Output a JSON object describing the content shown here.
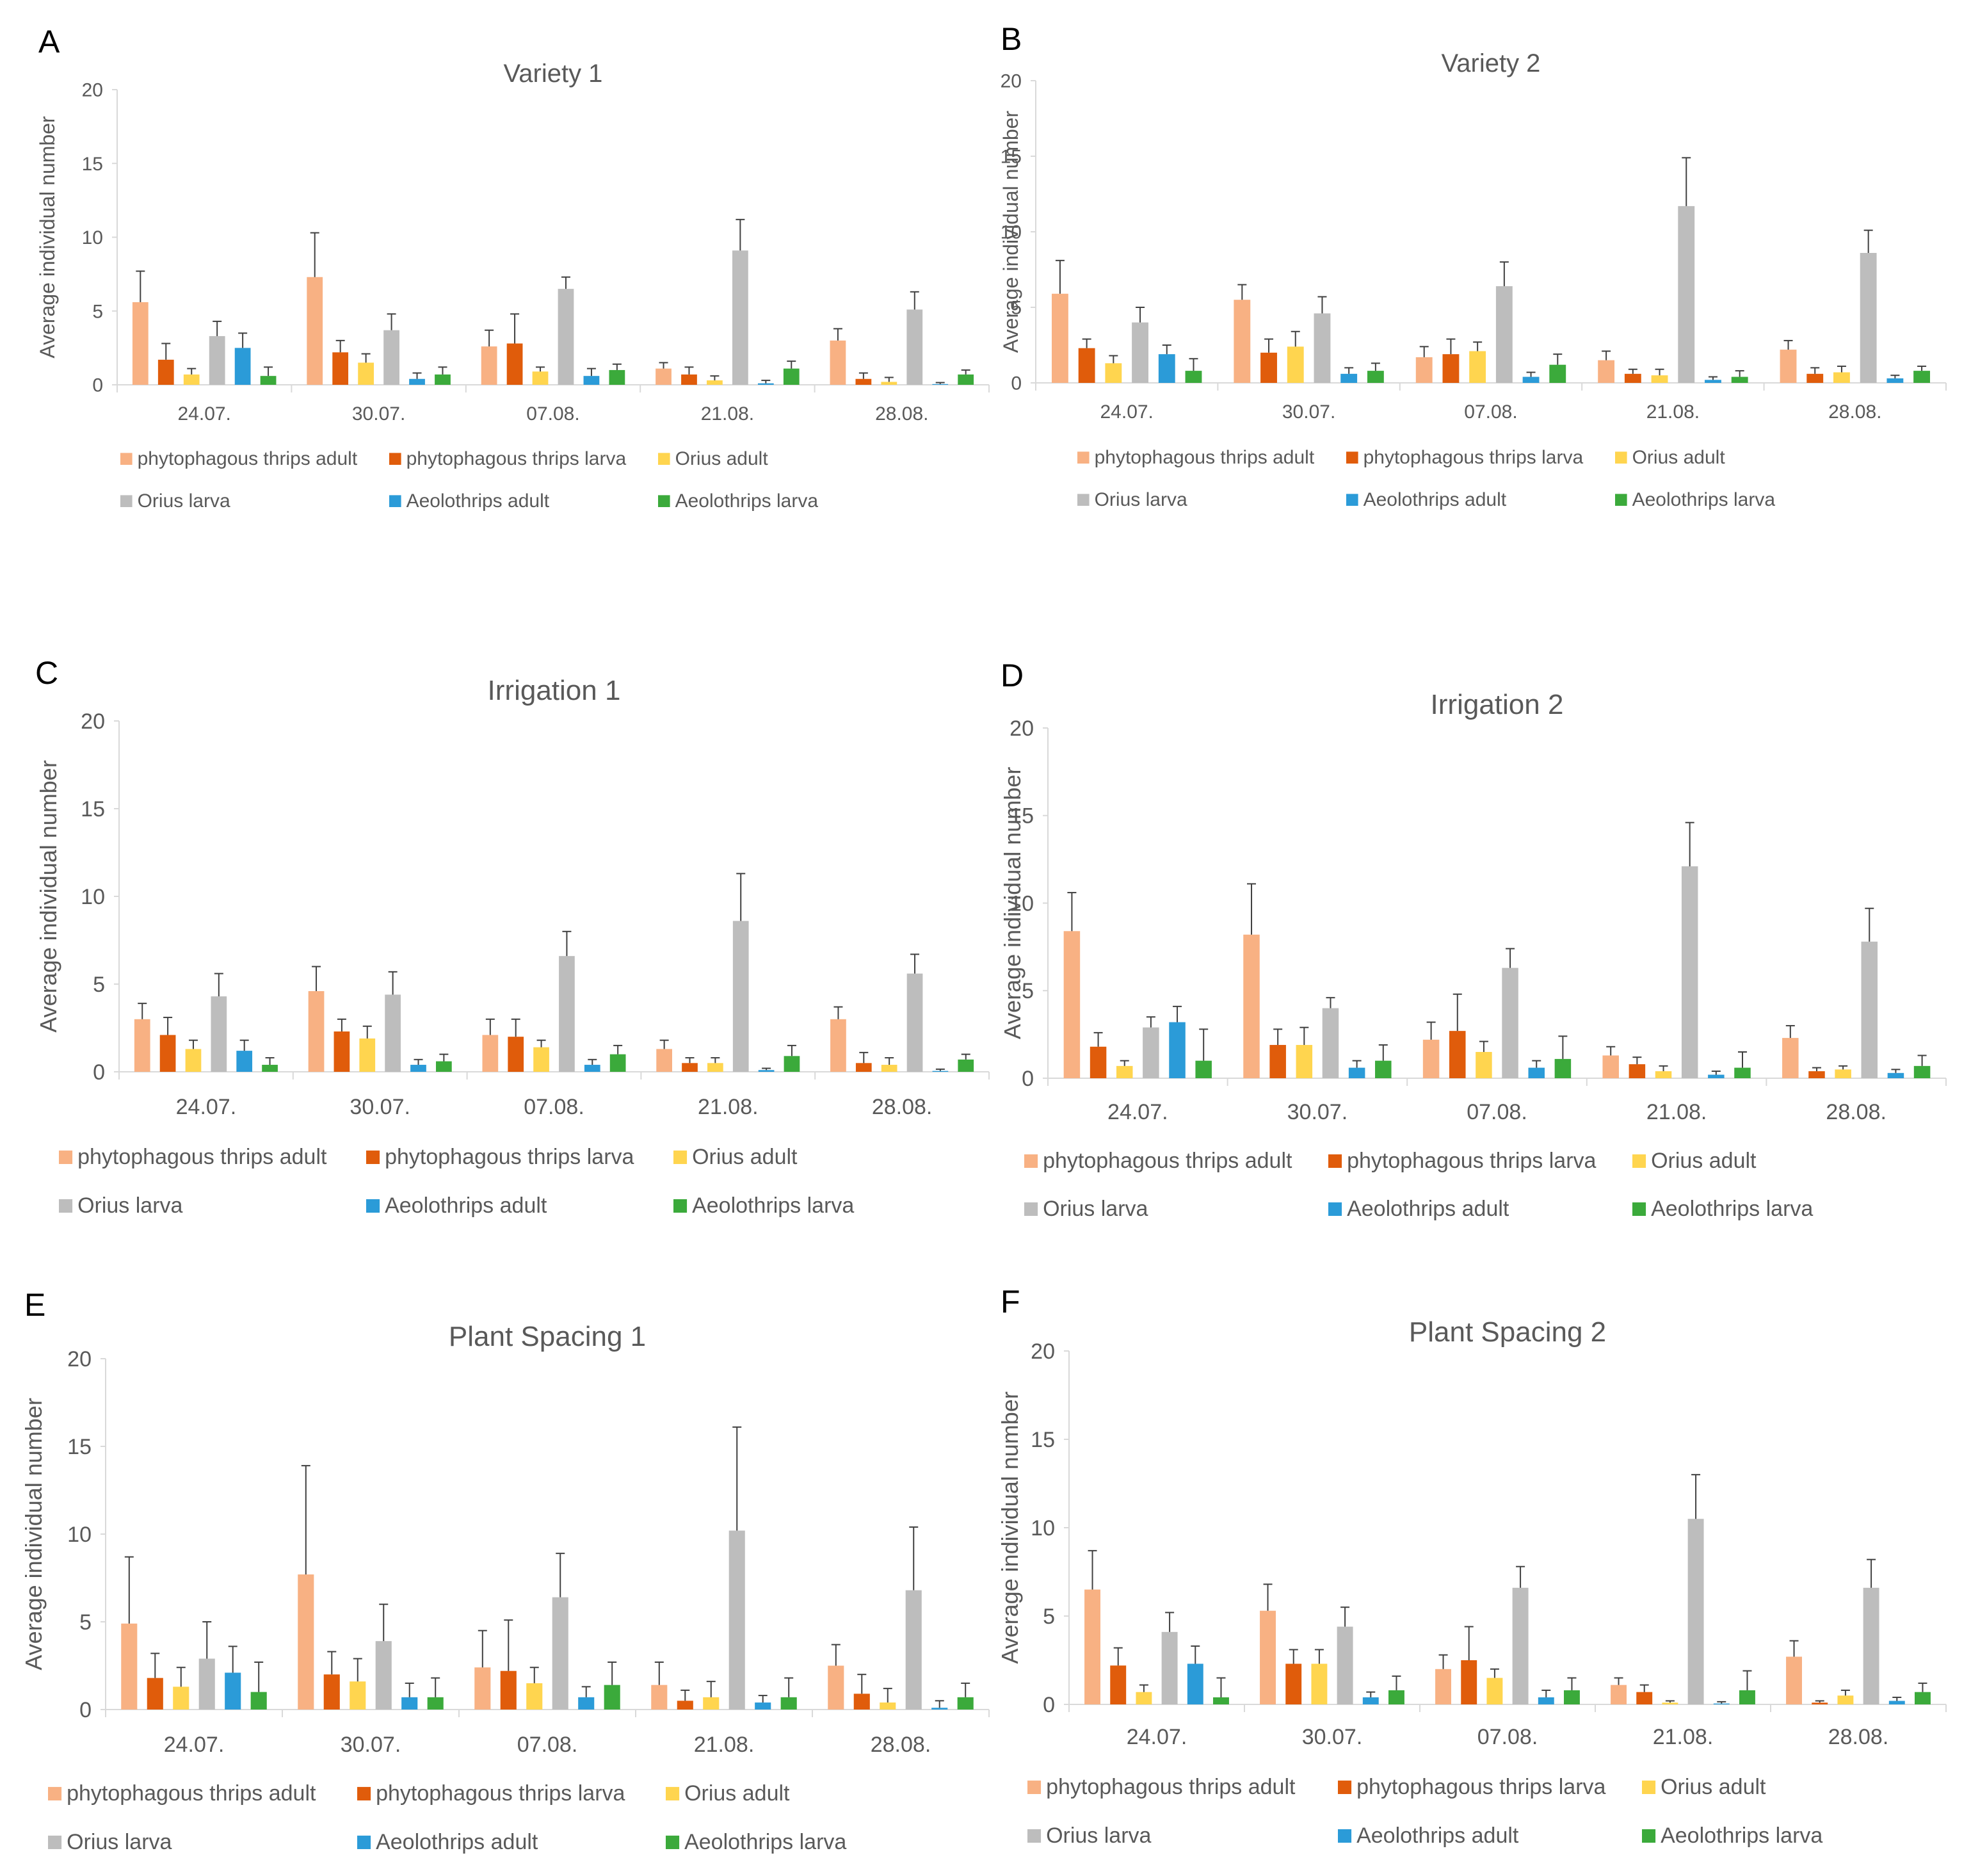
{
  "figure": {
    "series_names": [
      "phytophagous thrips adult",
      "phytophagous thrips larva",
      "Orius adult",
      "Orius larva",
      "Aeolothrips adult",
      "Aeolothrips larva"
    ],
    "series_colors": [
      "#F8B183",
      "#E05C0B",
      "#FFD54F",
      "#BDBDBD",
      "#2B9BD8",
      "#3BAA3B"
    ],
    "axis_color": "#D9D9D9",
    "text_color": "#595959"
  },
  "chart_data": [
    {
      "panel": "A",
      "type": "bar",
      "title": "Variety 1",
      "ylabel": "Average individual number",
      "ylim": [
        0,
        20
      ],
      "yticks": [
        0,
        5,
        10,
        15,
        20
      ],
      "categories": [
        "24.07.",
        "30.07.",
        "07.08.",
        "21.08.",
        "28.08."
      ],
      "legend_position": "bottom",
      "series": [
        {
          "name": "phytophagous thrips adult",
          "values": [
            5.6,
            7.3,
            2.6,
            1.1,
            3.0
          ],
          "errors": [
            2.1,
            3.0,
            1.1,
            0.4,
            0.8
          ]
        },
        {
          "name": "phytophagous thrips larva",
          "values": [
            1.7,
            2.2,
            2.8,
            0.7,
            0.4
          ],
          "errors": [
            1.1,
            0.8,
            2.0,
            0.5,
            0.4
          ]
        },
        {
          "name": "Orius adult",
          "values": [
            0.7,
            1.5,
            0.9,
            0.3,
            0.2
          ],
          "errors": [
            0.4,
            0.6,
            0.3,
            0.3,
            0.3
          ]
        },
        {
          "name": "Orius larva",
          "values": [
            3.3,
            3.7,
            6.5,
            9.1,
            5.1
          ],
          "errors": [
            1.0,
            1.1,
            0.8,
            2.1,
            1.2
          ]
        },
        {
          "name": "Aeolothrips adult",
          "values": [
            2.5,
            0.4,
            0.6,
            0.1,
            0.05
          ],
          "errors": [
            1.0,
            0.4,
            0.5,
            0.2,
            0.1
          ]
        },
        {
          "name": "Aeolothrips larva",
          "values": [
            0.6,
            0.7,
            1.0,
            1.1,
            0.7
          ],
          "errors": [
            0.6,
            0.5,
            0.4,
            0.5,
            0.3
          ]
        }
      ]
    },
    {
      "panel": "B",
      "type": "bar",
      "title": "Variety 2",
      "ylabel": "Average individual number",
      "ylim": [
        0,
        20
      ],
      "yticks": [
        0,
        5,
        10,
        15,
        20
      ],
      "categories": [
        "24.07.",
        "30.07.",
        "07.08.",
        "21.08.",
        "28.08."
      ],
      "legend_position": "bottom",
      "series": [
        {
          "name": "phytophagous thrips adult",
          "values": [
            5.9,
            5.5,
            1.7,
            1.5,
            2.2
          ],
          "errors": [
            2.2,
            1.0,
            0.7,
            0.6,
            0.6
          ]
        },
        {
          "name": "phytophagous thrips larva",
          "values": [
            2.3,
            2.0,
            1.9,
            0.6,
            0.6
          ],
          "errors": [
            0.6,
            0.9,
            1.0,
            0.3,
            0.4
          ]
        },
        {
          "name": "Orius adult",
          "values": [
            1.3,
            2.4,
            2.1,
            0.5,
            0.7
          ],
          "errors": [
            0.5,
            1.0,
            0.6,
            0.4,
            0.4
          ]
        },
        {
          "name": "Orius larva",
          "values": [
            4.0,
            4.6,
            6.4,
            11.7,
            8.6
          ],
          "errors": [
            1.0,
            1.1,
            1.6,
            3.2,
            1.5
          ]
        },
        {
          "name": "Aeolothrips adult",
          "values": [
            1.9,
            0.6,
            0.4,
            0.2,
            0.3
          ],
          "errors": [
            0.6,
            0.4,
            0.3,
            0.2,
            0.2
          ]
        },
        {
          "name": "Aeolothrips larva",
          "values": [
            0.8,
            0.8,
            1.2,
            0.4,
            0.8
          ],
          "errors": [
            0.8,
            0.5,
            0.7,
            0.4,
            0.3
          ]
        }
      ]
    },
    {
      "panel": "C",
      "type": "bar",
      "title": "Irrigation 1",
      "ylabel": "Average individual number",
      "ylim": [
        0,
        20
      ],
      "yticks": [
        0,
        5,
        10,
        15,
        20
      ],
      "categories": [
        "24.07.",
        "30.07.",
        "07.08.",
        "21.08.",
        "28.08."
      ],
      "legend_position": "bottom",
      "series": [
        {
          "name": "phytophagous thrips adult",
          "values": [
            3.0,
            4.6,
            2.1,
            1.3,
            3.0
          ],
          "errors": [
            0.9,
            1.4,
            0.9,
            0.5,
            0.7
          ]
        },
        {
          "name": "phytophagous thrips larva",
          "values": [
            2.1,
            2.3,
            2.0,
            0.5,
            0.5
          ],
          "errors": [
            1.0,
            0.7,
            1.0,
            0.3,
            0.6
          ]
        },
        {
          "name": "Orius adult",
          "values": [
            1.3,
            1.9,
            1.4,
            0.5,
            0.4
          ],
          "errors": [
            0.5,
            0.7,
            0.4,
            0.3,
            0.4
          ]
        },
        {
          "name": "Orius larva",
          "values": [
            4.3,
            4.4,
            6.6,
            8.6,
            5.6
          ],
          "errors": [
            1.3,
            1.3,
            1.4,
            2.7,
            1.1
          ]
        },
        {
          "name": "Aeolothrips adult",
          "values": [
            1.2,
            0.4,
            0.4,
            0.1,
            0.05
          ],
          "errors": [
            0.6,
            0.3,
            0.3,
            0.1,
            0.1
          ]
        },
        {
          "name": "Aeolothrips larva",
          "values": [
            0.4,
            0.6,
            1.0,
            0.9,
            0.7
          ],
          "errors": [
            0.4,
            0.4,
            0.5,
            0.6,
            0.3
          ]
        }
      ]
    },
    {
      "panel": "D",
      "type": "bar",
      "title": "Irrigation 2",
      "ylabel": "Average individual number",
      "ylim": [
        0,
        20
      ],
      "yticks": [
        0,
        5,
        10,
        15,
        20
      ],
      "categories": [
        "24.07.",
        "30.07.",
        "07.08.",
        "21.08.",
        "28.08."
      ],
      "legend_position": "bottom",
      "series": [
        {
          "name": "phytophagous thrips adult",
          "values": [
            8.4,
            8.2,
            2.2,
            1.3,
            2.3
          ],
          "errors": [
            2.2,
            2.9,
            1.0,
            0.5,
            0.7
          ]
        },
        {
          "name": "phytophagous thrips larva",
          "values": [
            1.8,
            1.9,
            2.7,
            0.8,
            0.4
          ],
          "errors": [
            0.8,
            0.9,
            2.1,
            0.4,
            0.2
          ]
        },
        {
          "name": "Orius adult",
          "values": [
            0.7,
            1.9,
            1.5,
            0.4,
            0.5
          ],
          "errors": [
            0.3,
            1.0,
            0.6,
            0.3,
            0.2
          ]
        },
        {
          "name": "Orius larva",
          "values": [
            2.9,
            4.0,
            6.3,
            12.1,
            7.8
          ],
          "errors": [
            0.6,
            0.6,
            1.1,
            2.5,
            1.9
          ]
        },
        {
          "name": "Aeolothrips adult",
          "values": [
            3.2,
            0.6,
            0.6,
            0.2,
            0.3
          ],
          "errors": [
            0.9,
            0.4,
            0.4,
            0.2,
            0.2
          ]
        },
        {
          "name": "Aeolothrips larva",
          "values": [
            1.0,
            1.0,
            1.1,
            0.6,
            0.7
          ],
          "errors": [
            1.8,
            0.9,
            1.3,
            0.9,
            0.6
          ]
        }
      ]
    },
    {
      "panel": "E",
      "type": "bar",
      "title": "Plant Spacing 1",
      "ylabel": "Average individual number",
      "ylim": [
        0,
        20
      ],
      "yticks": [
        0,
        5,
        10,
        15,
        20
      ],
      "categories": [
        "24.07.",
        "30.07.",
        "07.08.",
        "21.08.",
        "28.08."
      ],
      "legend_position": "bottom",
      "series": [
        {
          "name": "phytophagous thrips adult",
          "values": [
            4.9,
            7.7,
            2.4,
            1.4,
            2.5
          ],
          "errors": [
            3.8,
            6.2,
            2.1,
            1.3,
            1.2
          ]
        },
        {
          "name": "phytophagous thrips larva",
          "values": [
            1.8,
            2.0,
            2.2,
            0.5,
            0.9
          ],
          "errors": [
            1.4,
            1.3,
            2.9,
            0.6,
            1.1
          ]
        },
        {
          "name": "Orius adult",
          "values": [
            1.3,
            1.6,
            1.5,
            0.7,
            0.4
          ],
          "errors": [
            1.1,
            1.3,
            0.9,
            0.9,
            0.8
          ]
        },
        {
          "name": "Orius larva",
          "values": [
            2.9,
            3.9,
            6.4,
            10.2,
            6.8
          ],
          "errors": [
            2.1,
            2.1,
            2.5,
            5.9,
            3.6
          ]
        },
        {
          "name": "Aeolothrips adult",
          "values": [
            2.1,
            0.7,
            0.7,
            0.4,
            0.1
          ],
          "errors": [
            1.5,
            0.8,
            0.6,
            0.4,
            0.4
          ]
        },
        {
          "name": "Aeolothrips larva",
          "values": [
            1.0,
            0.7,
            1.4,
            0.7,
            0.7
          ],
          "errors": [
            1.7,
            1.1,
            1.3,
            1.1,
            0.8
          ]
        }
      ]
    },
    {
      "panel": "F",
      "type": "bar",
      "title": "Plant Spacing 2",
      "ylabel": "Average individual number",
      "ylim": [
        0,
        20
      ],
      "yticks": [
        0,
        5,
        10,
        15,
        20
      ],
      "categories": [
        "24.07.",
        "30.07.",
        "07.08.",
        "21.08.",
        "28.08."
      ],
      "legend_position": "bottom",
      "series": [
        {
          "name": "phytophagous thrips adult",
          "values": [
            6.5,
            5.3,
            2.0,
            1.1,
            2.7
          ],
          "errors": [
            2.2,
            1.5,
            0.8,
            0.4,
            0.9
          ]
        },
        {
          "name": "phytophagous thrips larva",
          "values": [
            2.2,
            2.3,
            2.5,
            0.7,
            0.1
          ],
          "errors": [
            1.0,
            0.8,
            1.9,
            0.4,
            0.1
          ]
        },
        {
          "name": "Orius adult",
          "values": [
            0.7,
            2.3,
            1.5,
            0.1,
            0.5
          ],
          "errors": [
            0.4,
            0.8,
            0.5,
            0.1,
            0.3
          ]
        },
        {
          "name": "Orius larva",
          "values": [
            4.1,
            4.4,
            6.6,
            10.5,
            6.6
          ],
          "errors": [
            1.1,
            1.1,
            1.2,
            2.5,
            1.6
          ]
        },
        {
          "name": "Aeolothrips adult",
          "values": [
            2.3,
            0.4,
            0.4,
            0.05,
            0.2
          ],
          "errors": [
            1.0,
            0.3,
            0.4,
            0.1,
            0.2
          ]
        },
        {
          "name": "Aeolothrips larva",
          "values": [
            0.4,
            0.8,
            0.8,
            0.8,
            0.7
          ],
          "errors": [
            1.1,
            0.8,
            0.7,
            1.1,
            0.5
          ]
        }
      ]
    }
  ]
}
